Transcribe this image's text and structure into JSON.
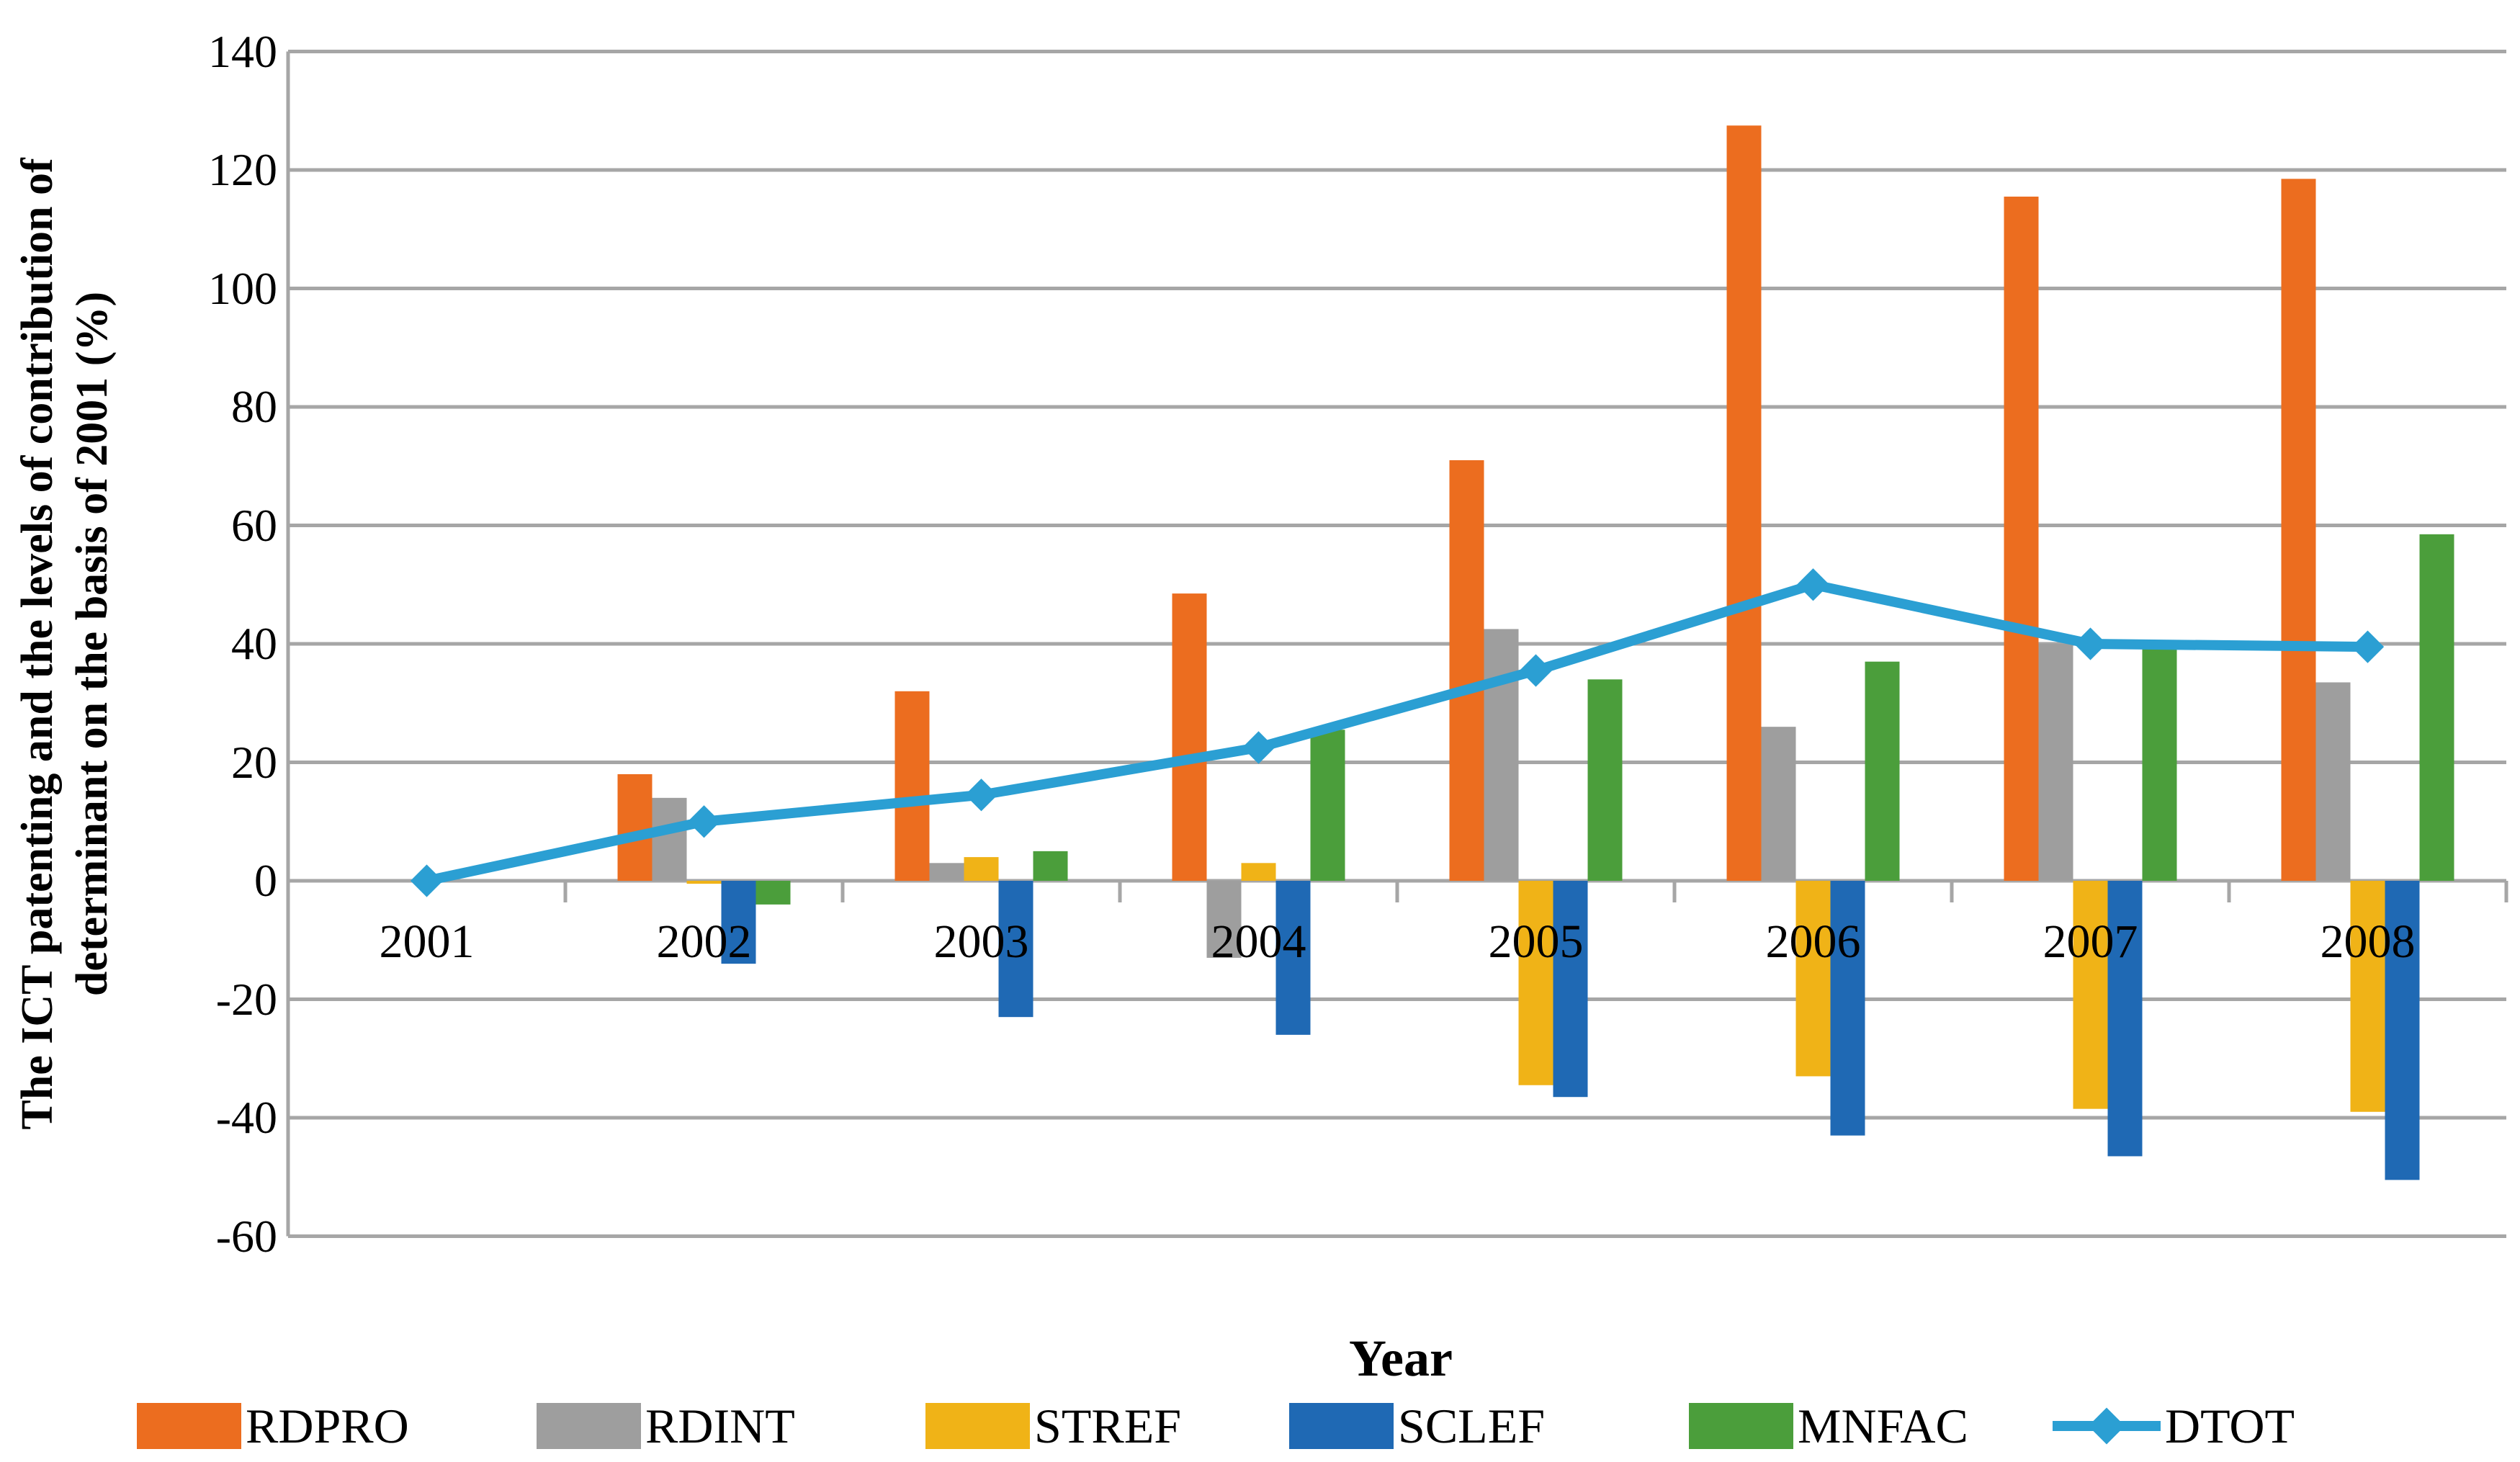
{
  "figure": {
    "xlabel": "Year",
    "ylabel_line1": "The ICT patenting and the levels of contribution of",
    "ylabel_line2": "determinant on the basis of 2001 (%)"
  },
  "chart_data": {
    "type": "combo-bar-line",
    "title": "",
    "xlabel": "Year",
    "ylabel": "The ICT patenting and the levels of contribution of determinant on the basis of 2001 (%)",
    "ylim": [
      -60,
      140
    ],
    "ytick_step": 20,
    "y_ticks": [
      "140",
      "120",
      "100",
      "80",
      "60",
      "40",
      "20",
      "0",
      "-20",
      "-40",
      "-60"
    ],
    "grid": true,
    "legend_position": "bottom",
    "categories": [
      "2001",
      "2002",
      "2003",
      "2004",
      "2005",
      "2006",
      "2007",
      "2008"
    ],
    "series": [
      {
        "name": "RDPRO",
        "type": "bar",
        "color": "#EC6D1F",
        "values": [
          0,
          18,
          32,
          48.5,
          71,
          127.5,
          115.5,
          118.5
        ]
      },
      {
        "name": "RDINT",
        "type": "bar",
        "color": "#9E9E9E",
        "values": [
          0,
          14,
          3,
          -13,
          42.5,
          26,
          40,
          33.5
        ]
      },
      {
        "name": "STREF",
        "type": "bar",
        "color": "#F0B317",
        "values": [
          0,
          -0.5,
          4,
          3,
          -34.5,
          -33,
          -38.5,
          -39
        ]
      },
      {
        "name": "SCLEF",
        "type": "bar",
        "color": "#1F69B4",
        "values": [
          0,
          -14,
          -23,
          -26,
          -36.5,
          -43,
          -46.5,
          -50.5
        ]
      },
      {
        "name": "MNFAC",
        "type": "bar",
        "color": "#4B9E3B",
        "values": [
          0,
          -4,
          5,
          25.5,
          34,
          37,
          39.5,
          58.5
        ]
      },
      {
        "name": "DTOT",
        "type": "line",
        "color": "#2B9FD3",
        "values": [
          0,
          10,
          14.5,
          22.5,
          35.5,
          50,
          40,
          39.5
        ]
      }
    ],
    "colors": {
      "grid": "#A6A6A6",
      "axis": "#A6A6A6",
      "text": "#000000",
      "background": "#FFFFFF"
    }
  }
}
